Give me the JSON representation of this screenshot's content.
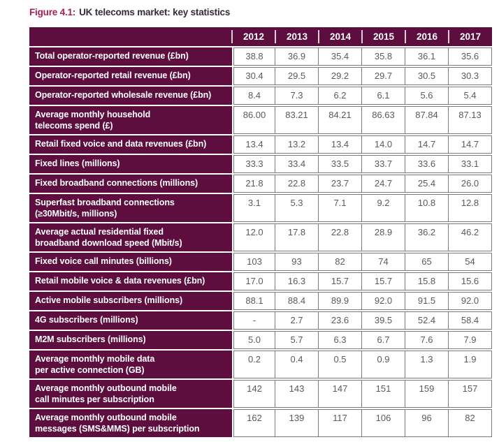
{
  "figure": {
    "label": "Figure 4.1:",
    "title": "UK telecoms market: key statistics"
  },
  "colors": {
    "header_background": "#5e0e3e",
    "figure_label": "#a81e55",
    "figure_title_text": "#37293d",
    "data_text": "#5a5a5c",
    "cell_border": "#7a7a7a"
  },
  "table": {
    "year_headers": [
      "2012",
      "2013",
      "2014",
      "2015",
      "2016",
      "2017"
    ],
    "rows": [
      {
        "label_lines": [
          "Total operator-reported revenue (£bn)"
        ],
        "values": [
          "38.8",
          "36.9",
          "35.4",
          "35.8",
          "36.1",
          "35.6"
        ]
      },
      {
        "label_lines": [
          "Operator-reported retail revenue (£bn)"
        ],
        "values": [
          "30.4",
          "29.5",
          "29.2",
          "29.7",
          "30.5",
          "30.3"
        ]
      },
      {
        "label_lines": [
          "Operator-reported wholesale revenue (£bn)"
        ],
        "values": [
          "8.4",
          "7.3",
          "6.2",
          "6.1",
          "5.6",
          "5.4"
        ]
      },
      {
        "label_lines": [
          "Average monthly household",
          "telecoms spend (£)"
        ],
        "values": [
          "86.00",
          "83.21",
          "84.21",
          "86.63",
          "87.84",
          "87.13"
        ]
      },
      {
        "label_lines": [
          "Retail fixed voice and data revenues (£bn)"
        ],
        "values": [
          "13.4",
          "13.2",
          "13.4",
          "14.0",
          "14.7",
          "14.7"
        ]
      },
      {
        "label_lines": [
          "Fixed lines (millions)"
        ],
        "values": [
          "33.3",
          "33.4",
          "33.5",
          "33.7",
          "33.6",
          "33.1"
        ]
      },
      {
        "label_lines": [
          "Fixed broadband connections (millions)"
        ],
        "values": [
          "21.8",
          "22.8",
          "23.7",
          "24.7",
          "25.4",
          "26.0"
        ]
      },
      {
        "label_lines": [
          "Superfast broadband connections",
          "(≥30Mbit/s, millions)"
        ],
        "values": [
          "3.1",
          "5.3",
          "7.1",
          "9.2",
          "10.8",
          "12.8"
        ]
      },
      {
        "label_lines": [
          "Average actual residential fixed",
          "broadband download speed (Mbit/s)"
        ],
        "values": [
          "12.0",
          "17.8",
          "22.8",
          "28.9",
          "36.2",
          "46.2"
        ]
      },
      {
        "label_lines": [
          "Fixed voice call minutes (billions)"
        ],
        "values": [
          "103",
          "93",
          "82",
          "74",
          "65",
          "54"
        ]
      },
      {
        "label_lines": [
          "Retail mobile voice & data revenues (£bn)"
        ],
        "values": [
          "17.0",
          "16.3",
          "15.7",
          "15.7",
          "15.8",
          "15.6"
        ]
      },
      {
        "label_lines": [
          "Active mobile subscribers (millions)"
        ],
        "values": [
          "88.1",
          "88.4",
          "89.9",
          "92.0",
          "91.5",
          "92.0"
        ]
      },
      {
        "label_lines": [
          "4G subscribers (millions)"
        ],
        "values": [
          "-",
          "2.7",
          "23.6",
          "39.5",
          "52.4",
          "58.4"
        ]
      },
      {
        "label_lines": [
          "M2M subscribers (millions)"
        ],
        "values": [
          "5.0",
          "5.7",
          "6.3",
          "6.7",
          "7.6",
          "7.9"
        ]
      },
      {
        "label_lines": [
          "Average monthly mobile data",
          "per active connection (GB)"
        ],
        "values": [
          "0.2",
          "0.4",
          "0.5",
          "0.9",
          "1.3",
          "1.9"
        ]
      },
      {
        "label_lines": [
          "Average monthly outbound mobile",
          "call minutes per subscription"
        ],
        "values": [
          "142",
          "143",
          "147",
          "151",
          "159",
          "157"
        ]
      },
      {
        "label_lines": [
          "Average monthly outbound mobile",
          "messages (SMS&MMS) per subscription"
        ],
        "values": [
          "162",
          "139",
          "117",
          "106",
          "96",
          "82"
        ]
      }
    ]
  }
}
